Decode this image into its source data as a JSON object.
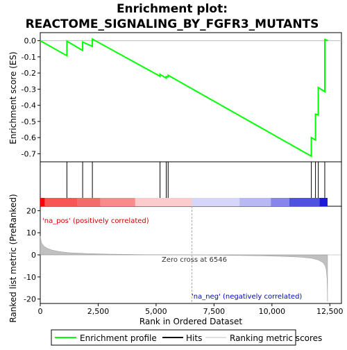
{
  "chart_data": {
    "type": "line",
    "title_line1": "Enrichment plot:",
    "title_line2": "REACTOME_SIGNALING_BY_FGFR3_MUTANTS",
    "top_panel": {
      "ylabel": "Enrichment score (ES)",
      "ylim": [
        -0.75,
        0.05
      ],
      "yticks": [
        0.0,
        -0.1,
        -0.2,
        -0.3,
        -0.4,
        -0.5,
        -0.6,
        -0.7
      ],
      "ytick_labels": [
        "0.0",
        "-0.1",
        "-0.2",
        "-0.3",
        "-0.4",
        "-0.5",
        "-0.6",
        "-0.7"
      ],
      "series": {
        "name": "Enrichment profile",
        "color": "#00ff00",
        "x": [
          0,
          1150,
          1150,
          1830,
          1830,
          2250,
          2250,
          5170,
          5170,
          5440,
          5440,
          5520,
          5520,
          11700,
          11700,
          11880,
          11880,
          12000,
          12000,
          12280,
          12280,
          12420
        ],
        "y": [
          0.0,
          -0.093,
          -0.003,
          -0.06,
          -0.008,
          -0.035,
          0.01,
          -0.22,
          -0.208,
          -0.232,
          -0.222,
          -0.224,
          -0.214,
          -0.715,
          -0.6,
          -0.615,
          -0.455,
          -0.46,
          -0.29,
          -0.315,
          0.008,
          0.0
        ]
      }
    },
    "hits": {
      "name": "Hits",
      "x": [
        1150,
        1830,
        2250,
        5170,
        5440,
        5520,
        11700,
        11880,
        12000,
        12280
      ]
    },
    "ranking_bar": {
      "segments": [
        {
          "from": 0,
          "to": 200,
          "color": "#ff0000"
        },
        {
          "from": 200,
          "to": 1600,
          "color": "#f85555"
        },
        {
          "from": 1600,
          "to": 2600,
          "color": "#f36b6b"
        },
        {
          "from": 2600,
          "to": 4100,
          "color": "#fa8b8b"
        },
        {
          "from": 4100,
          "to": 6546,
          "color": "#fccbcb"
        },
        {
          "from": 6546,
          "to": 8600,
          "color": "#d6d6fa"
        },
        {
          "from": 8600,
          "to": 9950,
          "color": "#b8b8f3"
        },
        {
          "from": 9950,
          "to": 10750,
          "color": "#8585ed"
        },
        {
          "from": 10750,
          "to": 12050,
          "color": "#5151e0"
        },
        {
          "from": 12050,
          "to": 12400,
          "color": "#1a1ad8"
        }
      ]
    },
    "bottom_panel": {
      "ylabel": "Ranked list metric (PreRanked)",
      "ylim": [
        -22,
        22
      ],
      "yticks": [
        20,
        10,
        0,
        -10,
        -20
      ],
      "ytick_labels": [
        "20",
        "10",
        "0",
        "-10",
        "-20"
      ],
      "series": {
        "name": "Ranking metric scores",
        "color": "#c0c0c0",
        "x": [
          0,
          50,
          150,
          300,
          500,
          800,
          1200,
          2000,
          3000,
          4500,
          6546,
          8000,
          9500,
          10500,
          11200,
          11700,
          12000,
          12200,
          12300,
          12350,
          12380,
          12400
        ],
        "y": [
          8.5,
          5.5,
          4.0,
          3.0,
          2.2,
          1.5,
          1.0,
          0.6,
          0.3,
          0.1,
          0.0,
          -0.2,
          -0.4,
          -0.7,
          -1.0,
          -1.5,
          -2.3,
          -3.5,
          -5.0,
          -7.0,
          -11.0,
          -21.0
        ]
      },
      "pos_label": "'na_pos' (positively correlated)",
      "neg_label": "'na_neg' (negatively correlated)",
      "zero_cross_label": "Zero cross at 6546",
      "zero_cross": 6546
    },
    "xaxis": {
      "label": "Rank in Ordered Dataset",
      "xlim": [
        0,
        13000
      ],
      "ticks": [
        0,
        2500,
        5000,
        7500,
        10000,
        12500
      ],
      "tick_labels": [
        "0",
        "2,500",
        "5,000",
        "7,500",
        "10,000",
        "12,500"
      ]
    },
    "legend": {
      "placement": "bottom",
      "items": [
        {
          "label": "Enrichment profile",
          "color": "#00ff00"
        },
        {
          "label": "Hits",
          "color": "#000000"
        },
        {
          "label": "Ranking metric scores",
          "color": "#c0c0c0"
        }
      ]
    },
    "colors": {
      "pos_text": "#cc0000",
      "neg_text": "#0000cc"
    }
  }
}
